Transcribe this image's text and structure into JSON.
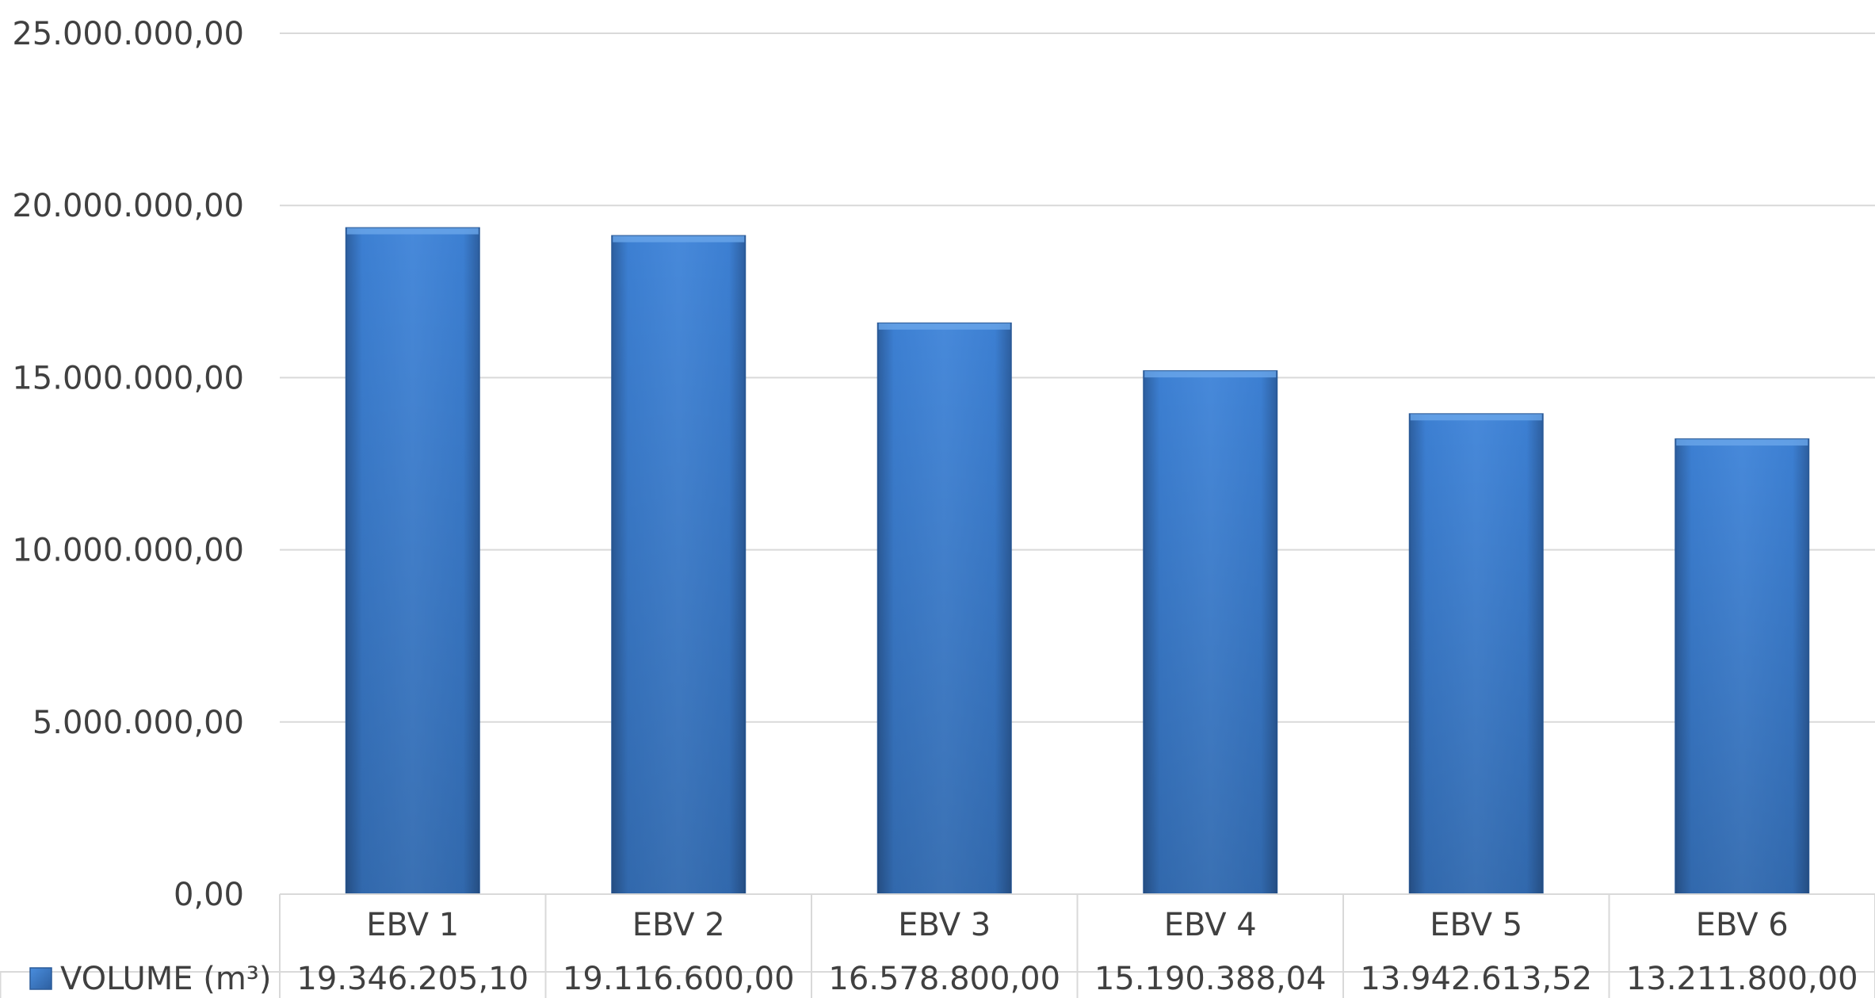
{
  "chart_data": {
    "type": "bar",
    "categories": [
      "EBV 1",
      "EBV 2",
      "EBV 3",
      "EBV 4",
      "EBV 5",
      "EBV 6"
    ],
    "series": [
      {
        "name": "VOLUME (m³)",
        "values": [
          19346205.1,
          19116600.0,
          16578800.0,
          15190388.04,
          13942613.52,
          13211800.0
        ],
        "labels": [
          "19.346.205,10",
          "19.116.600,00",
          "16.578.800,00",
          "15.190.388,04",
          "13.942.613,52",
          "13.211.800,00"
        ],
        "color": "#3a78c8"
      }
    ],
    "y_ticks": [
      {
        "value": 0,
        "label": "0,00"
      },
      {
        "value": 5000000,
        "label": "5.000.000,00"
      },
      {
        "value": 10000000,
        "label": "10.000.000,00"
      },
      {
        "value": 15000000,
        "label": "15.000.000,00"
      },
      {
        "value": 20000000,
        "label": "20.000.000,00"
      },
      {
        "value": 25000000,
        "label": "25.000.000,00"
      }
    ],
    "ylim": [
      0,
      25000000
    ],
    "grid": true,
    "legend": "data-table-left",
    "data_table": true,
    "title": "",
    "xlabel": "",
    "ylabel": ""
  },
  "colors": {
    "gridline": "#d9d9d9",
    "table_border": "#d9d9d9",
    "text": "#404040"
  }
}
